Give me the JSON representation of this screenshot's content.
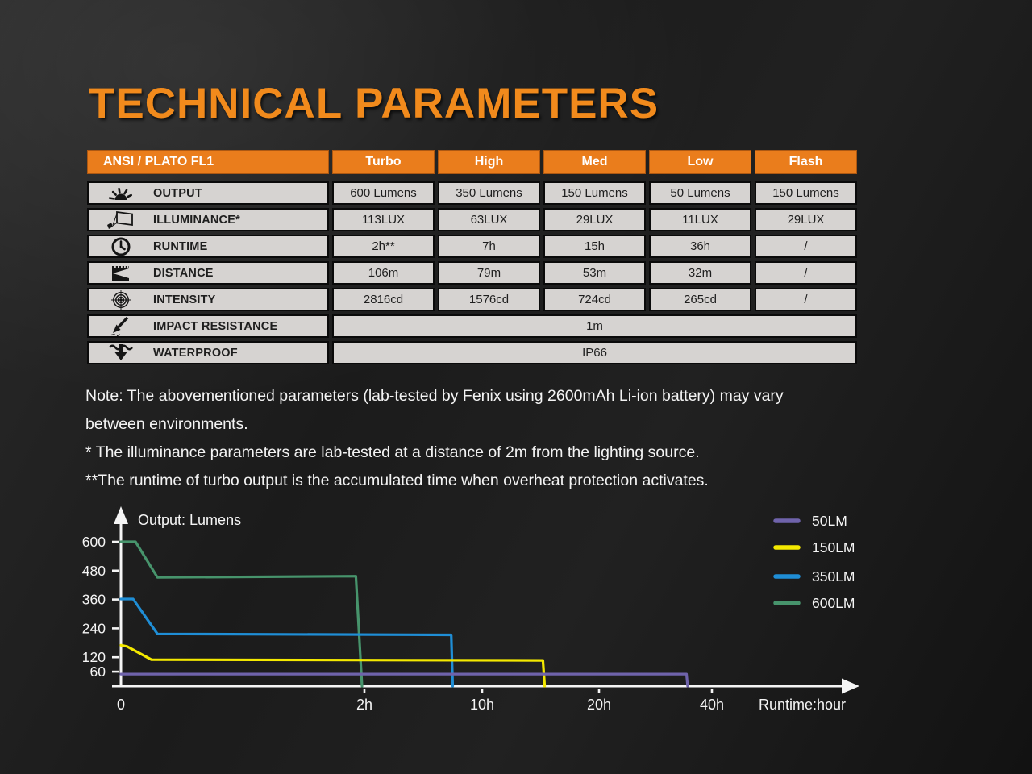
{
  "page": {
    "title": "TECHNICAL PARAMETERS"
  },
  "table": {
    "header": [
      "ANSI / PLATO FL1",
      "Turbo",
      "High",
      "Med",
      "Low",
      "Flash"
    ],
    "rows": [
      {
        "icon": "light-output-icon",
        "label": "OUTPUT",
        "values": [
          "600 Lumens",
          "350 Lumens",
          "150 Lumens",
          "50 Lumens",
          "150 Lumens"
        ]
      },
      {
        "icon": "illuminance-icon",
        "label": "ILLUMINANCE*",
        "values": [
          "113LUX",
          "63LUX",
          "29LUX",
          "11LUX",
          "29LUX"
        ]
      },
      {
        "icon": "runtime-clock-icon",
        "label": "RUNTIME",
        "values": [
          "2h**",
          "7h",
          "15h",
          "36h",
          "/"
        ]
      },
      {
        "icon": "distance-icon",
        "label": "DISTANCE",
        "values": [
          "106m",
          "79m",
          "53m",
          "32m",
          "/"
        ]
      },
      {
        "icon": "intensity-icon",
        "label": "INTENSITY",
        "values": [
          "2816cd",
          "1576cd",
          "724cd",
          "265cd",
          "/"
        ]
      },
      {
        "icon": "impact-resistance-icon",
        "label": "IMPACT RESISTANCE",
        "values": [
          "1m"
        ]
      },
      {
        "icon": "waterproof-icon",
        "label": "WATERPROOF",
        "values": [
          "IP66"
        ]
      }
    ]
  },
  "notes": {
    "lines": [
      "Note: The abovementioned parameters (lab-tested by Fenix using 2600mAh Li-ion battery) may vary",
      "between environments.",
      "* The illuminance parameters are lab-tested at a distance of 2m from the lighting source.",
      "**The runtime of turbo output is the accumulated time when overheat protection activates."
    ]
  },
  "chart_data": {
    "type": "line",
    "title": "Output: Lumens",
    "xlabel": "Runtime:hour",
    "ylabel": "Output: Lumens",
    "x_axis_nonlinear": true,
    "x_tick_values": [
      0,
      2,
      10,
      20,
      40
    ],
    "x_tick_labels": [
      "0",
      "2h",
      "10h",
      "20h",
      "40h"
    ],
    "y_ticks": [
      60,
      120,
      240,
      360,
      480,
      600
    ],
    "ylim": [
      0,
      640
    ],
    "grid": false,
    "legend_position": "top-right",
    "axis_color": "#f5f5f5",
    "series": [
      {
        "name": "50LM",
        "color": "#6f63ab",
        "points": [
          [
            0,
            50
          ],
          [
            35.5,
            50
          ],
          [
            35.7,
            0
          ]
        ]
      },
      {
        "name": "150LM",
        "color": "#f4e900",
        "points": [
          [
            0,
            170
          ],
          [
            0.05,
            165
          ],
          [
            0.25,
            110
          ],
          [
            15.2,
            107
          ],
          [
            15.35,
            0
          ]
        ]
      },
      {
        "name": "350LM",
        "color": "#1f8ed6",
        "points": [
          [
            0,
            362
          ],
          [
            0.1,
            362
          ],
          [
            0.3,
            217
          ],
          [
            7.9,
            213
          ],
          [
            8.0,
            0
          ]
        ]
      },
      {
        "name": "600LM",
        "color": "#47946c",
        "points": [
          [
            0,
            600
          ],
          [
            0.12,
            600
          ],
          [
            0.3,
            452
          ],
          [
            1.93,
            457
          ],
          [
            1.98,
            0
          ]
        ]
      }
    ]
  }
}
